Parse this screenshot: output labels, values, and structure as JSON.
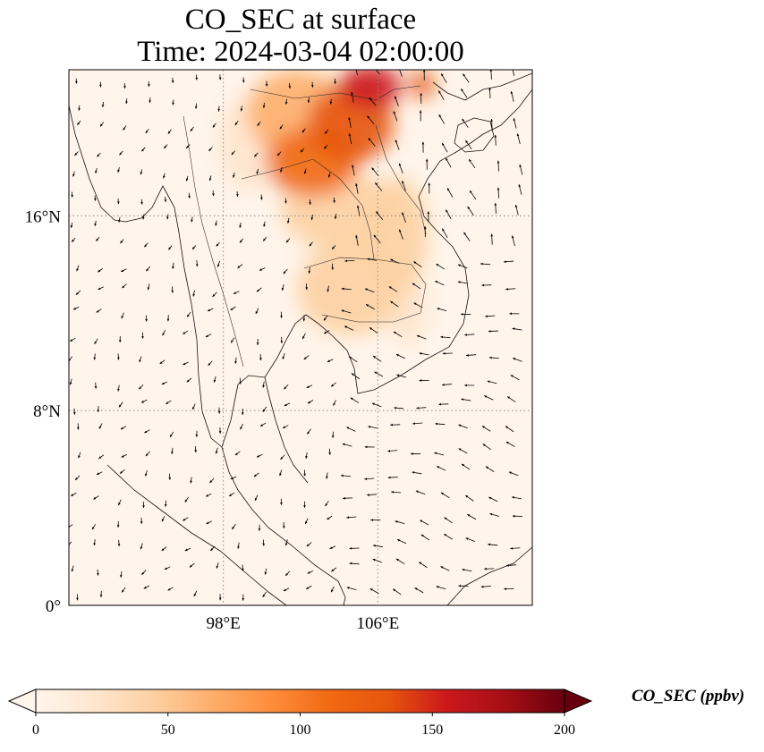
{
  "title": {
    "line1": "CO_SEC at surface",
    "line2": "Time: 2024-03-04 02:00:00"
  },
  "map": {
    "lon_range": [
      90,
      114
    ],
    "lat_range": [
      0,
      22
    ],
    "lon_ticks": [
      {
        "value": 98,
        "label": "98°E"
      },
      {
        "value": 106,
        "label": "106°E"
      }
    ],
    "lat_ticks": [
      {
        "value": 0,
        "label": "0°"
      },
      {
        "value": 8,
        "label": "8°N"
      },
      {
        "value": 16,
        "label": "16°N"
      }
    ],
    "gridlines": "dotted",
    "field_blobs": [
      {
        "lon": 105.6,
        "lat": 21.3,
        "rx": 1.6,
        "ry": 0.9,
        "value": 165
      },
      {
        "lon": 108.3,
        "lat": 21.4,
        "rx": 0.6,
        "ry": 0.6,
        "value": 140
      },
      {
        "lon": 104.6,
        "lat": 19.8,
        "rx": 2.2,
        "ry": 1.6,
        "value": 125
      },
      {
        "lon": 102.6,
        "lat": 18.2,
        "rx": 2.4,
        "ry": 1.4,
        "value": 115
      },
      {
        "lon": 101.8,
        "lat": 20.2,
        "rx": 2.6,
        "ry": 1.8,
        "value": 70
      },
      {
        "lon": 104.0,
        "lat": 16.2,
        "rx": 3.0,
        "ry": 1.6,
        "value": 45
      },
      {
        "lon": 104.6,
        "lat": 13.0,
        "rx": 2.8,
        "ry": 1.9,
        "value": 35
      },
      {
        "lon": 107.0,
        "lat": 15.2,
        "rx": 1.6,
        "ry": 2.4,
        "value": 38
      },
      {
        "lon": 107.6,
        "lat": 12.2,
        "rx": 1.0,
        "ry": 1.6,
        "value": 25
      },
      {
        "lon": 99.5,
        "lat": 19.0,
        "rx": 1.8,
        "ry": 2.0,
        "value": 30
      }
    ]
  },
  "colorbar": {
    "min": 0,
    "max": 200,
    "ticks": [
      "0",
      "50",
      "100",
      "150",
      "200"
    ],
    "label": "CO_SEC (ppbv)",
    "colors": [
      "#fff5eb",
      "#fee6ce",
      "#fdd0a2",
      "#fdae6b",
      "#fd8d3c",
      "#f16913",
      "#e6550d",
      "#cb181d",
      "#a50f15",
      "#67000d"
    ]
  }
}
